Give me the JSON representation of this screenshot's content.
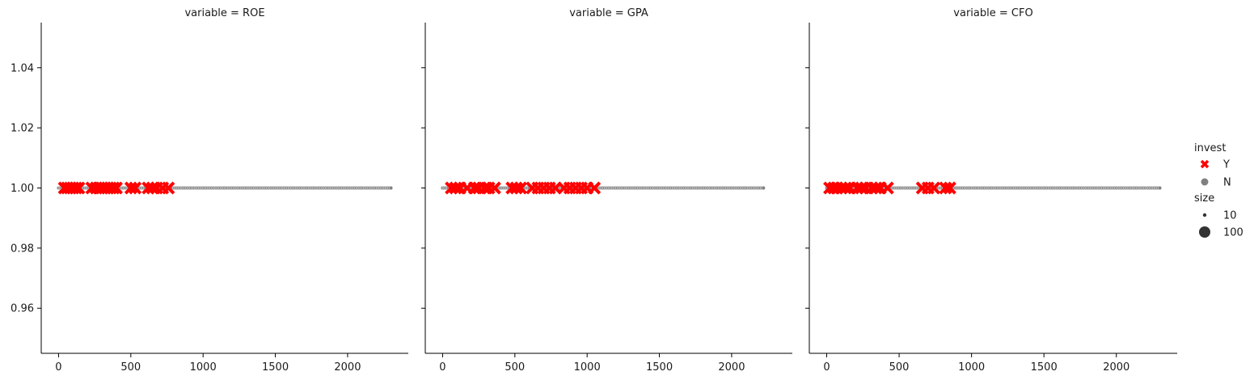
{
  "chart_data": [
    {
      "type": "scatter",
      "title": "variable = ROE",
      "xlabel": "",
      "ylabel": "",
      "xlim": [
        -120,
        2420
      ],
      "ylim": [
        0.945,
        1.055
      ],
      "x_ticks": [
        0,
        500,
        1000,
        1500,
        2000
      ],
      "x_tick_labels": [
        "0",
        "500",
        "1000",
        "1500",
        "2000"
      ],
      "y_ticks": [
        0.96,
        0.98,
        1.0,
        1.02,
        1.04
      ],
      "y_tick_labels": [
        "0.96",
        "0.98",
        "1.00",
        "1.02",
        "1.04"
      ],
      "y_value": 1.0,
      "n_range": [
        0,
        2300
      ],
      "n_step": 10,
      "y_points_x": [
        40,
        60,
        80,
        100,
        120,
        140,
        230,
        260,
        280,
        300,
        320,
        340,
        360,
        380,
        400,
        500,
        530,
        620,
        650,
        680,
        720,
        760
      ]
    },
    {
      "type": "scatter",
      "title": "variable = GPA",
      "xlabel": "",
      "ylabel": "",
      "xlim": [
        -120,
        2420
      ],
      "ylim": [
        0.945,
        1.055
      ],
      "x_ticks": [
        0,
        500,
        1000,
        1500,
        2000
      ],
      "x_tick_labels": [
        "0",
        "500",
        "1000",
        "1500",
        "2000"
      ],
      "y_ticks": [
        0.96,
        0.98,
        1.0,
        1.02,
        1.04
      ],
      "y_tick_labels": [
        "",
        "",
        "",
        "",
        ""
      ],
      "y_value": 1.0,
      "n_range": [
        0,
        2220
      ],
      "n_step": 10,
      "y_points_x": [
        60,
        90,
        120,
        170,
        220,
        250,
        290,
        320,
        360,
        480,
        510,
        540,
        620,
        660,
        700,
        740,
        780,
        840,
        880,
        920,
        960,
        1000,
        1050
      ]
    },
    {
      "type": "scatter",
      "title": "variable = CFO",
      "xlabel": "",
      "ylabel": "",
      "xlim": [
        -120,
        2420
      ],
      "ylim": [
        0.945,
        1.055
      ],
      "x_ticks": [
        0,
        500,
        1000,
        1500,
        2000
      ],
      "x_tick_labels": [
        "0",
        "500",
        "1000",
        "1500",
        "2000"
      ],
      "y_ticks": [
        0.96,
        0.98,
        1.0,
        1.02,
        1.04
      ],
      "y_tick_labels": [
        "",
        "",
        "",
        "",
        ""
      ],
      "y_value": 1.0,
      "n_range": [
        0,
        2300
      ],
      "n_step": 10,
      "y_points_x": [
        20,
        50,
        70,
        100,
        130,
        160,
        210,
        240,
        270,
        310,
        340,
        370,
        420,
        660,
        700,
        740,
        820,
        850
      ]
    }
  ],
  "legend": {
    "hue_title": "invest",
    "hue_entries": [
      {
        "label": "Y",
        "marker": "x",
        "color": "#ff0000"
      },
      {
        "label": "N",
        "marker": "circle",
        "color": "#808080"
      }
    ],
    "size_title": "size",
    "size_entries": [
      {
        "label": "10",
        "size_value": 10
      },
      {
        "label": "100",
        "size_value": 100
      }
    ]
  },
  "colors": {
    "Y": "#ff0000",
    "N": "#808080",
    "N_edge": "#ffffff",
    "Y_edge": "#ffffff",
    "axis": "#000000",
    "legend_marker": "#333333"
  }
}
